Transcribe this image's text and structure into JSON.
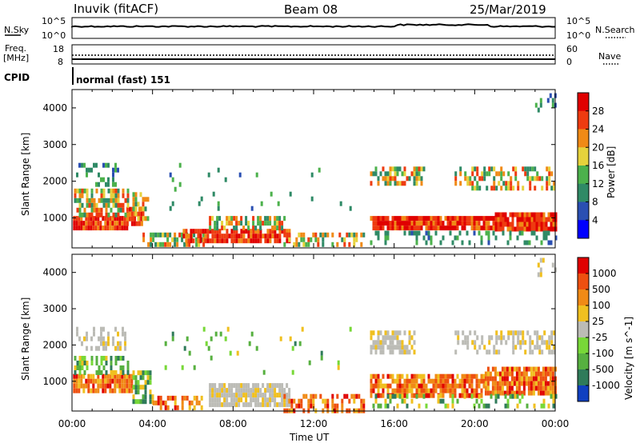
{
  "header": {
    "station": "Inuvik (fitACF)",
    "beam": "Beam 08",
    "date": "25/Mar/2019"
  },
  "top_panels": {
    "nsky_label": "N.Sky",
    "nsky_ticks": [
      "10^5",
      "10^0"
    ],
    "nsearch_label": "N.Search",
    "nsearch_ticks": [
      "10^5",
      "10^0"
    ],
    "freq_label": "Freq.",
    "freq_unit": "[MHz]",
    "freq_ticks": [
      "18",
      "8"
    ],
    "nave_label": "Nave",
    "nave_ticks": [
      "60",
      "0"
    ],
    "cpid_label": "CPID",
    "cpid_value": "normal (fast) 151"
  },
  "chart_data": [
    {
      "type": "heatmap",
      "name": "power",
      "ylabel": "Slant Range [km]",
      "y_ticks": [
        "1000",
        "2000",
        "3000",
        "4000"
      ],
      "ylim": [
        180,
        4500
      ],
      "x_ticks": [
        "00:00",
        "04:00",
        "08:00",
        "12:00",
        "16:00",
        "20:00",
        "00:00"
      ],
      "xlim_hours": [
        0,
        24
      ],
      "colorbar_label": "Power [dB]",
      "colorbar_ticks": [
        "4",
        "8",
        "12",
        "16",
        "20",
        "24",
        "28"
      ],
      "colorbar_range": [
        0,
        30
      ],
      "colors": [
        "#0000ff",
        "#2a4fb2",
        "#2f8a66",
        "#4cb14c",
        "#e6d23c",
        "#f08a16",
        "#ee3b10",
        "#e00000"
      ]
    },
    {
      "type": "heatmap",
      "name": "velocity",
      "ylabel": "Slant Range [km]",
      "y_ticks": [
        "1000",
        "2000",
        "3000",
        "4000"
      ],
      "ylim": [
        180,
        4500
      ],
      "x_ticks": [
        "00:00",
        "04:00",
        "08:00",
        "12:00",
        "16:00",
        "20:00",
        "00:00"
      ],
      "xlim_hours": [
        0,
        24
      ],
      "xlabel": "Time UT",
      "colorbar_label": "Velocity [m s^-1]",
      "colorbar_ticks": [
        "1000",
        "500",
        "100",
        "25",
        "-25",
        "-100",
        "-500",
        "-1000"
      ],
      "colors": [
        "#1040c0",
        "#2f7b5a",
        "#57b040",
        "#78d838",
        "#bcbcb6",
        "#f0c020",
        "#f08a16",
        "#ee5010",
        "#e00000"
      ]
    }
  ]
}
